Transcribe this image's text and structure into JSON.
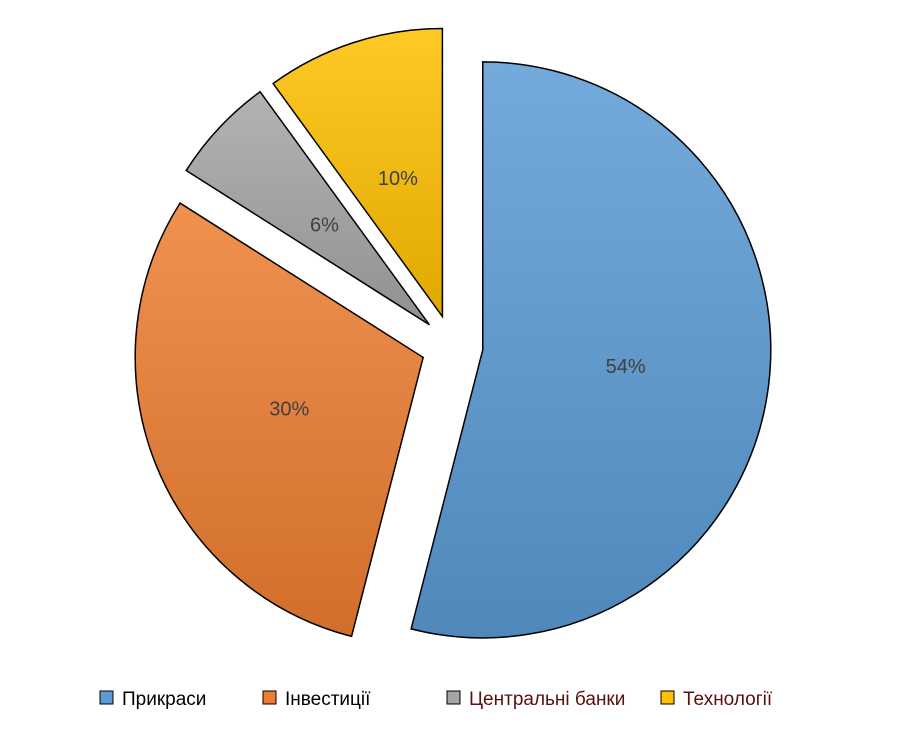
{
  "chart_data": {
    "type": "pie",
    "categories": [
      "Прикраси",
      "Інвестиції",
      "Центральні банки",
      "Технології"
    ],
    "values": [
      54,
      30,
      6,
      10
    ],
    "value_labels": [
      "54%",
      "30%",
      "6%",
      "10%"
    ],
    "colors": [
      "#5b9bd5",
      "#ed7d31",
      "#a5a5a5",
      "#ffc000"
    ],
    "legend": "bottom"
  }
}
